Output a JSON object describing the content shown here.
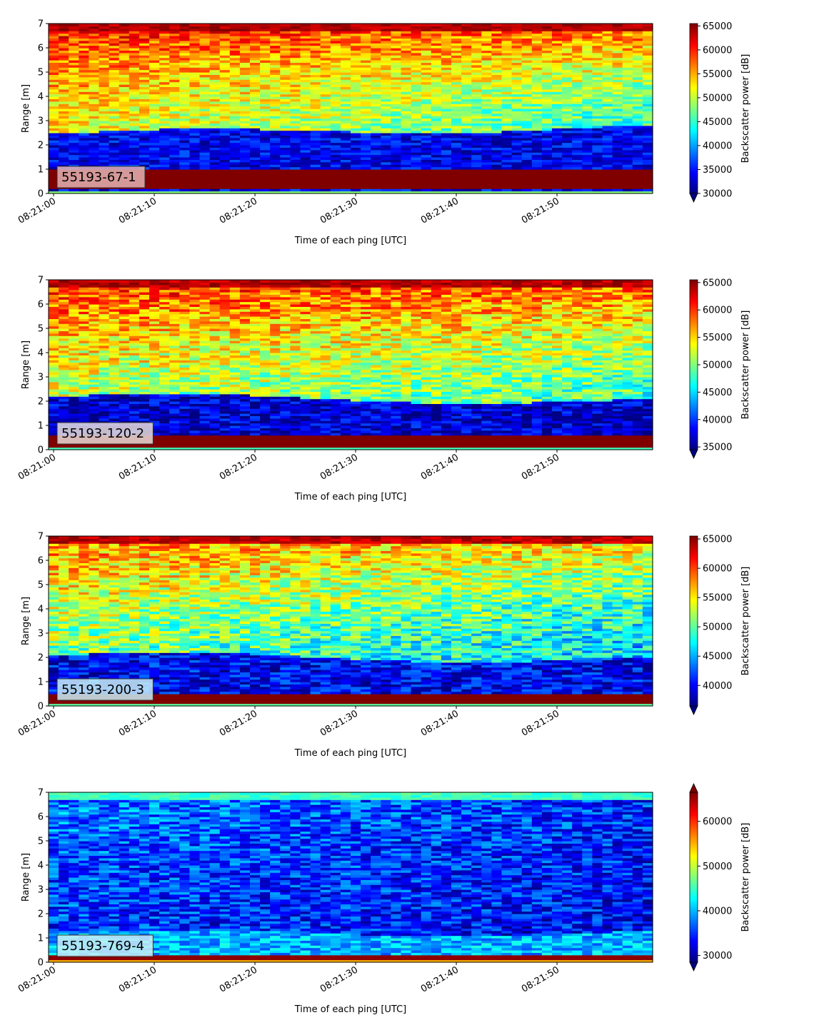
{
  "chart_data": [
    {
      "type": "heatmap",
      "label": "55193-67-1",
      "label_bg": "#e4b4b4",
      "xlabel": "Time of each ping [UTC]",
      "ylabel": "Range [m]",
      "xlim": [
        -0.5,
        59.5
      ],
      "ylim": [
        0,
        7
      ],
      "x_ticks": [
        0,
        10,
        20,
        30,
        40,
        50
      ],
      "x_tick_labels": [
        "08:21:00",
        "08:21:10",
        "08:21:20",
        "08:21:30",
        "08:21:40",
        "08:21:50"
      ],
      "y_ticks": [
        0,
        1,
        2,
        3,
        4,
        5,
        6,
        7
      ],
      "y_tick_labels": [
        "0",
        "1",
        "2",
        "3",
        "4",
        "5",
        "6",
        "7"
      ],
      "colormap": "jet",
      "vmin": 30000,
      "vmax": 65500,
      "colorbar_label": "Backscatter power [dB]",
      "colorbar_ticks": [
        30000,
        35000,
        40000,
        45000,
        50000,
        55000,
        60000,
        65000
      ],
      "colorbar_tick_labels": [
        "30000",
        "35000",
        "40000",
        "45000",
        "50000",
        "55000",
        "60000",
        "65000"
      ],
      "colorbar_extend": "min",
      "profile": {
        "near_strip": 48000,
        "bottom_band": [
          0.25,
          1.0,
          65500
        ],
        "blue_band_top_start": 2.45,
        "blue_band_top_end": 2.75,
        "blue_level": 34000,
        "mid_start": 52000,
        "mid_end": 45000,
        "top_start": 60000,
        "top_end": 57000,
        "surface": 65500,
        "noise": 4500
      }
    },
    {
      "type": "heatmap",
      "label": "55193-120-2",
      "label_bg": "#e8dcd8",
      "xlabel": "Time of each ping [UTC]",
      "ylabel": "Range [m]",
      "xlim": [
        -0.5,
        59.5
      ],
      "ylim": [
        0,
        7
      ],
      "x_ticks": [
        0,
        10,
        20,
        30,
        40,
        50
      ],
      "x_tick_labels": [
        "08:21:00",
        "08:21:10",
        "08:21:20",
        "08:21:30",
        "08:21:40",
        "08:21:50"
      ],
      "y_ticks": [
        0,
        1,
        2,
        3,
        4,
        5,
        6,
        7
      ],
      "y_tick_labels": [
        "0",
        "1",
        "2",
        "3",
        "4",
        "5",
        "6",
        "7"
      ],
      "colormap": "jet",
      "vmin": 34500,
      "vmax": 65500,
      "colorbar_label": "Backscatter power [dB]",
      "colorbar_ticks": [
        35000,
        40000,
        45000,
        50000,
        55000,
        60000,
        65000
      ],
      "colorbar_tick_labels": [
        "35000",
        "40000",
        "45000",
        "50000",
        "55000",
        "60000",
        "65000"
      ],
      "colorbar_extend": "min",
      "profile": {
        "near_strip": 48000,
        "bottom_band": [
          0.1,
          0.65,
          65500
        ],
        "blue_band_top_start": 2.2,
        "blue_band_top_end": 2.0,
        "blue_level": 37000,
        "mid_start": 52000,
        "mid_end": 48000,
        "top_start": 60000,
        "top_end": 58000,
        "surface": 65500,
        "noise": 4500
      }
    },
    {
      "type": "heatmap",
      "label": "55193-200-3",
      "label_bg": "#c8eef6",
      "xlabel": "Time of each ping [UTC]",
      "ylabel": "Range [m]",
      "xlim": [
        -0.5,
        59.5
      ],
      "ylim": [
        0,
        7
      ],
      "x_ticks": [
        0,
        10,
        20,
        30,
        40,
        50
      ],
      "x_tick_labels": [
        "08:21:00",
        "08:21:10",
        "08:21:20",
        "08:21:30",
        "08:21:40",
        "08:21:50"
      ],
      "y_ticks": [
        0,
        1,
        2,
        3,
        4,
        5,
        6,
        7
      ],
      "y_tick_labels": [
        "0",
        "1",
        "2",
        "3",
        "4",
        "5",
        "6",
        "7"
      ],
      "colormap": "jet",
      "vmin": 36500,
      "vmax": 65500,
      "colorbar_label": "Backscatter power [dB]",
      "colorbar_ticks": [
        40000,
        45000,
        50000,
        55000,
        60000,
        65000
      ],
      "colorbar_tick_labels": [
        "40000",
        "45000",
        "50000",
        "55000",
        "60000",
        "65000"
      ],
      "colorbar_extend": "min",
      "profile": {
        "near_strip": 50000,
        "bottom_band": [
          0.05,
          0.45,
          65500
        ],
        "blue_band_top_start": 2.1,
        "blue_band_top_end": 1.9,
        "blue_level": 40000,
        "mid_start": 51000,
        "mid_end": 46000,
        "top_start": 58000,
        "top_end": 55000,
        "surface": 65500,
        "noise": 4500
      }
    },
    {
      "type": "heatmap",
      "label": "55193-769-4",
      "label_bg": "#c8eef6",
      "xlabel": "Time of each ping [UTC]",
      "ylabel": "Range [m]",
      "xlim": [
        -0.5,
        59.5
      ],
      "ylim": [
        0,
        7
      ],
      "x_ticks": [
        0,
        10,
        20,
        30,
        40,
        50
      ],
      "x_tick_labels": [
        "08:21:00",
        "08:21:10",
        "08:21:20",
        "08:21:30",
        "08:21:40",
        "08:21:50"
      ],
      "y_ticks": [
        0,
        1,
        2,
        3,
        4,
        5,
        6,
        7
      ],
      "y_tick_labels": [
        "0",
        "1",
        "2",
        "3",
        "4",
        "5",
        "6",
        "7"
      ],
      "colormap": "jet",
      "vmin": 28500,
      "vmax": 66500,
      "colorbar_label": "Backscatter power [dB]",
      "colorbar_ticks": [
        30000,
        40000,
        50000,
        60000
      ],
      "colorbar_tick_labels": [
        "30000",
        "40000",
        "50000",
        "60000"
      ],
      "colorbar_extend": "both",
      "profile": {
        "near_strip": 55000,
        "bottom_band": [
          0.05,
          0.35,
          66000
        ],
        "blue_band_top_start": 1.2,
        "blue_band_top_end": 1.2,
        "blue_level": 40000,
        "mid_start": 35000,
        "mid_end": 33000,
        "top_start": 38000,
        "top_end": 35000,
        "surface": 47000,
        "noise": 5000
      }
    }
  ]
}
